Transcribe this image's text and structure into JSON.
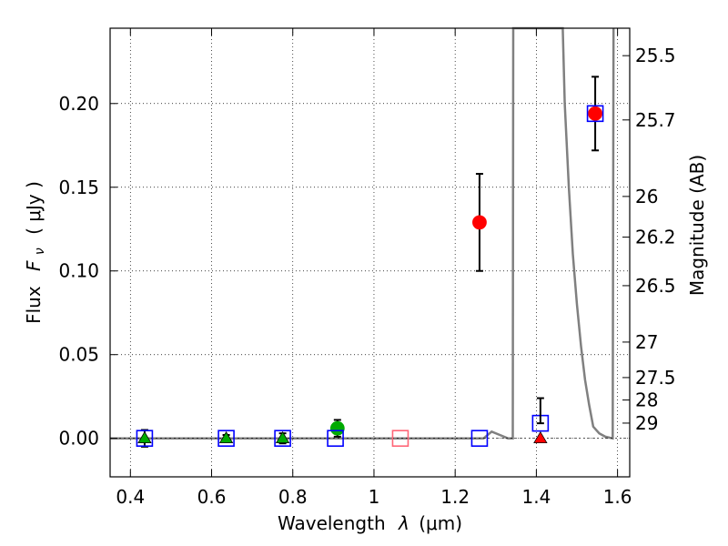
{
  "chart_data": {
    "type": "scatter",
    "xlabel_text": "Wavelength",
    "xlabel_symbol": "λ",
    "xlabel_unit": "(μm)",
    "ylabel_text": "Flux",
    "ylabel_symbol": "F",
    "ylabel_subscript": "ν",
    "ylabel_unit": "( μJy )",
    "ylabel_right": "Magnitude (AB)",
    "xlim": [
      0.35,
      1.63
    ],
    "ylim": [
      -0.023,
      0.245
    ],
    "grid": true,
    "x_ticks": [
      0.4,
      0.6,
      0.8,
      1.0,
      1.2,
      1.4,
      1.6
    ],
    "x_tick_labels": [
      "0.4",
      "0.6",
      "0.8",
      "1",
      "1.2",
      "1.4",
      "1.6"
    ],
    "y_ticks": [
      0.0,
      0.05,
      0.1,
      0.15,
      0.2
    ],
    "y_tick_labels": [
      "0.00",
      "0.05",
      "0.10",
      "0.15",
      "0.20"
    ],
    "right_ticks": [
      {
        "flux": 0.2286,
        "label": "25.5"
      },
      {
        "flux": 0.1902,
        "label": "25.7"
      },
      {
        "flux": 0.1445,
        "label": "26"
      },
      {
        "flux": 0.1202,
        "label": "26.2"
      },
      {
        "flux": 0.0912,
        "label": "26.5"
      },
      {
        "flux": 0.0575,
        "label": "27"
      },
      {
        "flux": 0.0363,
        "label": "27.5"
      },
      {
        "flux": 0.0229,
        "label": "28"
      },
      {
        "flux": 0.0091,
        "label": "29"
      }
    ],
    "model_sed": [
      [
        0.35,
        0.0
      ],
      [
        1.27,
        0.0
      ],
      [
        1.29,
        0.004
      ],
      [
        1.31,
        0.002
      ],
      [
        1.33,
        0.0
      ],
      [
        1.342,
        0.0
      ],
      [
        1.343,
        0.25
      ],
      [
        1.465,
        0.25
      ],
      [
        1.47,
        0.2
      ],
      [
        1.48,
        0.15
      ],
      [
        1.49,
        0.11
      ],
      [
        1.5,
        0.08
      ],
      [
        1.51,
        0.055
      ],
      [
        1.52,
        0.035
      ],
      [
        1.53,
        0.02
      ],
      [
        1.54,
        0.007
      ],
      [
        1.555,
        0.003
      ],
      [
        1.57,
        0.001
      ],
      [
        1.588,
        0.0
      ],
      [
        1.59,
        0.25
      ]
    ],
    "series": [
      {
        "name": "green-detections",
        "marker": "triangle",
        "color": "#00aa00",
        "points": [
          {
            "x": 0.435,
            "y": 0.0,
            "err": 0.005
          },
          {
            "x": 0.636,
            "y": 0.0,
            "err": 0.002
          },
          {
            "x": 0.775,
            "y": 0.0,
            "err": 0.003
          }
        ]
      },
      {
        "name": "green-circle",
        "marker": "circle",
        "color": "#00aa00",
        "points": [
          {
            "x": 0.91,
            "y": 0.006,
            "err": 0.005
          }
        ]
      },
      {
        "name": "red-detections",
        "marker": "circle",
        "color": "#ff0000",
        "points": [
          {
            "x": 1.26,
            "y": 0.129,
            "err": 0.029
          },
          {
            "x": 1.545,
            "y": 0.194,
            "err": 0.022
          }
        ]
      },
      {
        "name": "red-triangle",
        "marker": "triangle",
        "color": "#ff0000",
        "points": [
          {
            "x": 1.41,
            "y": 0.0,
            "err": 0
          }
        ]
      },
      {
        "name": "model-photometry",
        "marker": "square",
        "color": "#0000ff",
        "points": [
          {
            "x": 0.435,
            "y": 0.0
          },
          {
            "x": 0.636,
            "y": 0.0
          },
          {
            "x": 0.775,
            "y": 0.0
          },
          {
            "x": 0.905,
            "y": 0.0
          },
          {
            "x": 1.26,
            "y": 0.0
          },
          {
            "x": 1.41,
            "y": 0.009
          },
          {
            "x": 1.545,
            "y": 0.194
          }
        ]
      },
      {
        "name": "pink-square",
        "marker": "square",
        "color": "#ff6677",
        "points": [
          {
            "x": 1.065,
            "y": 0.0
          }
        ]
      }
    ],
    "upper_errorbar": {
      "x": 1.41,
      "y_low": 0.009,
      "y_high": 0.024
    }
  }
}
